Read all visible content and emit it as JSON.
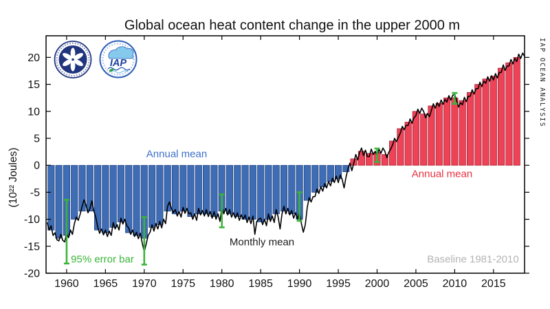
{
  "title": "Global ocean heat content change in the upper 2000 m",
  "credit": "IAP OCEAN ANALYSIS",
  "annotations": {
    "annual_mean_blue": "Annual mean",
    "annual_mean_red": "Annual mean",
    "monthly_mean": "Monthly mean",
    "error_bar": "95% error bar",
    "baseline": "Baseline 1981-2010"
  },
  "logos": {
    "cas_logo": "Chinese Academy of Sciences emblem",
    "iap_logo": "Institute of Atmospheric Physics emblem",
    "iap_text": "IAP"
  },
  "chart_data": {
    "type": "bar",
    "title": "Global ocean heat content change in the upper 2000 m",
    "xlabel": "",
    "ylabel": "(10²² Joules)",
    "xlim": [
      1957.35,
      2019
    ],
    "ylim": [
      -20,
      24
    ],
    "xticks": [
      1960,
      1965,
      1970,
      1975,
      1980,
      1985,
      1990,
      1995,
      2000,
      2005,
      2010,
      2015
    ],
    "yticks": [
      -20,
      -15,
      -10,
      -5,
      0,
      5,
      10,
      15,
      20
    ],
    "grid": false,
    "baseline_note": "Baseline 1981-2010",
    "bar_series_name": "Annual mean",
    "years": [
      1958,
      1959,
      1960,
      1961,
      1962,
      1963,
      1964,
      1965,
      1966,
      1967,
      1968,
      1969,
      1970,
      1971,
      1972,
      1973,
      1974,
      1975,
      1976,
      1977,
      1978,
      1979,
      1980,
      1981,
      1982,
      1983,
      1984,
      1985,
      1986,
      1987,
      1988,
      1989,
      1990,
      1991,
      1992,
      1993,
      1994,
      1995,
      1996,
      1997,
      1998,
      1999,
      2000,
      2001,
      2002,
      2003,
      2004,
      2005,
      2006,
      2007,
      2008,
      2009,
      2010,
      2011,
      2012,
      2013,
      2014,
      2015,
      2016,
      2017,
      2018
    ],
    "annual_mean": [
      -12,
      -13.5,
      -13,
      -10,
      -8.5,
      -8.5,
      -12,
      -12.5,
      -11.5,
      -10.5,
      -12.5,
      -13,
      -13.5,
      -11.5,
      -11,
      -8.5,
      -9,
      -8.5,
      -9.5,
      -9,
      -9,
      -9.5,
      -8.5,
      -9,
      -9.5,
      -10,
      -10,
      -10.5,
      -10,
      -9,
      -8.5,
      -9,
      -10,
      -6.5,
      -5,
      -4,
      -3,
      -2.5,
      -1.2,
      1.2,
      2.6,
      2.2,
      2.4,
      2.0,
      4.5,
      6.8,
      8,
      10,
      9.5,
      11,
      11.5,
      12.5,
      12.5,
      12,
      13.5,
      15,
      16,
      16.5,
      18,
      19,
      20
    ],
    "monthly_mean": {
      "name": "Monthly mean",
      "start": 1957.5,
      "step": 0.25,
      "values": [
        -10.6,
        -12.0,
        -11.2,
        -13.0,
        -12.5,
        -13.8,
        -14.0,
        -12.8,
        -13.9,
        -14.2,
        -12.6,
        -13.4,
        -12.0,
        -12.8,
        -10.8,
        -9.6,
        -10.2,
        -9.0,
        -7.6,
        -6.4,
        -7.4,
        -8.8,
        -8.0,
        -6.6,
        -8.4,
        -9.6,
        -11.4,
        -12.6,
        -11.8,
        -12.9,
        -12.0,
        -13.2,
        -12.2,
        -13.0,
        -10.6,
        -11.8,
        -11.0,
        -12.0,
        -9.8,
        -10.9,
        -10.0,
        -11.2,
        -11.6,
        -12.8,
        -12.0,
        -13.2,
        -12.4,
        -13.6,
        -12.6,
        -14.5,
        -16.0,
        -14.6,
        -13.0,
        -12.4,
        -11.0,
        -12.2,
        -10.8,
        -11.8,
        -10.4,
        -11.6,
        -10.0,
        -10.8,
        -7.6,
        -6.8,
        -8.0,
        -8.8,
        -8.2,
        -9.4,
        -8.6,
        -9.6,
        -7.8,
        -8.9,
        -8.0,
        -9.0,
        -8.8,
        -10.0,
        -9.0,
        -10.2,
        -8.0,
        -9.2,
        -8.4,
        -9.4,
        -8.2,
        -9.5,
        -8.6,
        -9.8,
        -8.6,
        -10.0,
        -9.0,
        -10.4,
        -7.8,
        -9.0,
        -8.0,
        -9.2,
        -8.2,
        -9.6,
        -8.8,
        -9.8,
        -8.8,
        -10.2,
        -9.2,
        -10.0,
        -9.2,
        -10.6,
        -9.6,
        -10.8,
        -9.4,
        -12.8,
        -10.4,
        -10.0,
        -9.8,
        -11.0,
        -10.0,
        -11.2,
        -9.0,
        -10.4,
        -9.4,
        -10.6,
        -8.2,
        -9.6,
        -11.8,
        -9.0,
        -7.6,
        -9.0,
        -8.0,
        -9.2,
        -8.4,
        -9.8,
        -8.8,
        -10.0,
        -8.6,
        -10.8,
        -12.4,
        -11.0,
        -7.8,
        -6.0,
        -6.8,
        -5.8,
        -5.8,
        -4.4,
        -5.2,
        -4.0,
        -4.8,
        -3.4,
        -4.2,
        -3.0,
        -3.8,
        -2.4,
        -3.2,
        -2.0,
        -3.2,
        -1.8,
        -2.6,
        -4.2,
        -2.2,
        -0.6,
        0.4,
        -1.0,
        0.4,
        2.0,
        1.0,
        2.4,
        3.2,
        1.8,
        2.8,
        1.6,
        1.6,
        3.0,
        2.0,
        2.6,
        1.8,
        3.0,
        2.2,
        3.2,
        2.6,
        1.4,
        2.4,
        3.0,
        3.8,
        5.0,
        4.4,
        5.2,
        6.0,
        7.2,
        6.6,
        7.4,
        7.4,
        8.6,
        7.8,
        8.8,
        9.2,
        10.4,
        9.6,
        10.6,
        10.0,
        8.8,
        9.6,
        9.0,
        10.2,
        11.4,
        10.6,
        11.6,
        10.9,
        12.1,
        11.3,
        12.2,
        11.7,
        12.9,
        12.1,
        13.0,
        13.2,
        12.0,
        10.8,
        11.6,
        11.2,
        12.6,
        11.8,
        12.8,
        12.8,
        14.0,
        13.2,
        14.2,
        14.2,
        15.4,
        14.6,
        15.6,
        15.2,
        16.4,
        15.6,
        16.6,
        15.8,
        17.0,
        16.2,
        17.2,
        17.2,
        18.6,
        17.6,
        18.4,
        18.4,
        19.6,
        18.8,
        19.8,
        19.2,
        20.6,
        19.8,
        20.8,
        20.2
      ]
    },
    "error_bars": {
      "name": "95% error bar",
      "confidence": "95%",
      "points": [
        {
          "year": 1960,
          "low": -18.2,
          "high": -6.4
        },
        {
          "year": 1970,
          "low": -18.4,
          "high": -9.6
        },
        {
          "year": 1980,
          "low": -11.5,
          "high": -5.4
        },
        {
          "year": 1990,
          "low": -10.3,
          "high": -5.0
        },
        {
          "year": 2000,
          "low": 0.6,
          "high": 3.1
        },
        {
          "year": 2010,
          "low": 11.4,
          "high": 13.4
        }
      ]
    },
    "colors": {
      "annual_positive": "#ee4257",
      "annual_positive_edge": "#9c1a2e",
      "annual_negative": "#3e6cb5",
      "annual_negative_edge": "#1f3c78",
      "monthly_line": "#000000",
      "error_bar": "#3cb43a",
      "frame": "#000000",
      "tick_label": "#111111",
      "label_blue": "#3a6fc8",
      "label_red": "#e8303f",
      "label_green": "#3cb43a",
      "label_gray": "#b4b4b4",
      "label_black": "#1a1a1a"
    }
  }
}
